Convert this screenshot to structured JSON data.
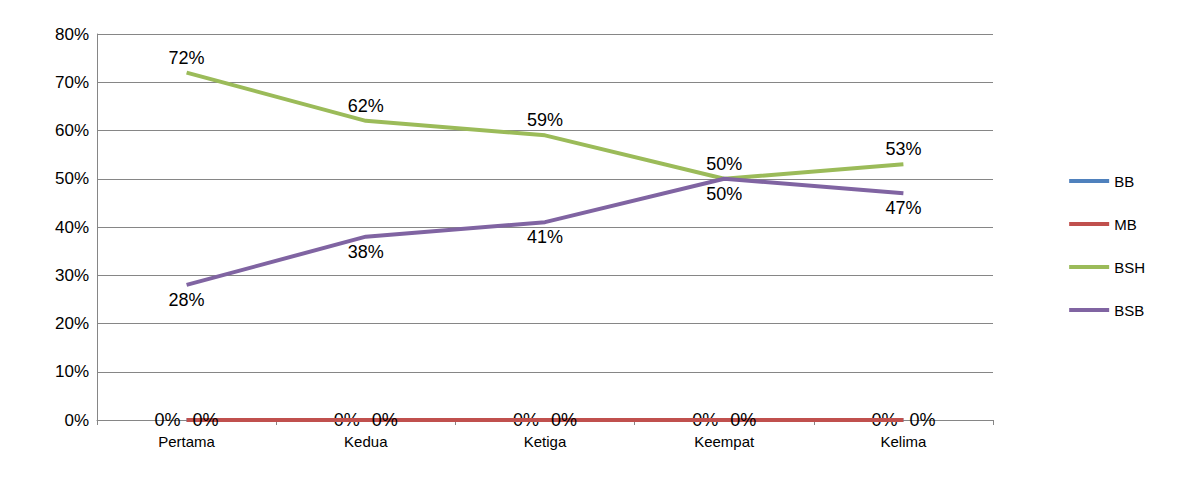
{
  "chart_data": {
    "type": "line",
    "categories": [
      "Pertama",
      "Kedua",
      "Ketiga",
      "Keempat",
      "Kelima"
    ],
    "series": [
      {
        "name": "BB",
        "color": "#4f81bd",
        "values": [
          0,
          0,
          0,
          0,
          0
        ],
        "value_labels": [
          "0%",
          "0%",
          "0%",
          "0%",
          "0%"
        ]
      },
      {
        "name": "MB",
        "color": "#c0504d",
        "values": [
          0,
          0,
          0,
          0,
          0
        ],
        "value_labels": [
          "0%",
          "0%",
          "0%",
          "0%",
          "0%"
        ]
      },
      {
        "name": "BSH",
        "color": "#9bbb59",
        "values": [
          72,
          62,
          59,
          50,
          53
        ],
        "value_labels": [
          "72%",
          "62%",
          "59%",
          "50%",
          "53%"
        ]
      },
      {
        "name": "BSB",
        "color": "#8064a2",
        "values": [
          28,
          38,
          41,
          50,
          47
        ],
        "value_labels": [
          "28%",
          "38%",
          "41%",
          "50%",
          "47%"
        ]
      }
    ],
    "ylim": [
      0,
      80
    ],
    "yticks": [
      {
        "value": 0,
        "label": "0%"
      },
      {
        "value": 10,
        "label": "10%"
      },
      {
        "value": 20,
        "label": "20%"
      },
      {
        "value": 30,
        "label": "30%"
      },
      {
        "value": 40,
        "label": "40%"
      },
      {
        "value": 50,
        "label": "50%"
      },
      {
        "value": 60,
        "label": "60%"
      },
      {
        "value": 70,
        "label": "70%"
      },
      {
        "value": 80,
        "label": "80%"
      }
    ],
    "grid": true,
    "legend": "right",
    "data_labels": true
  }
}
